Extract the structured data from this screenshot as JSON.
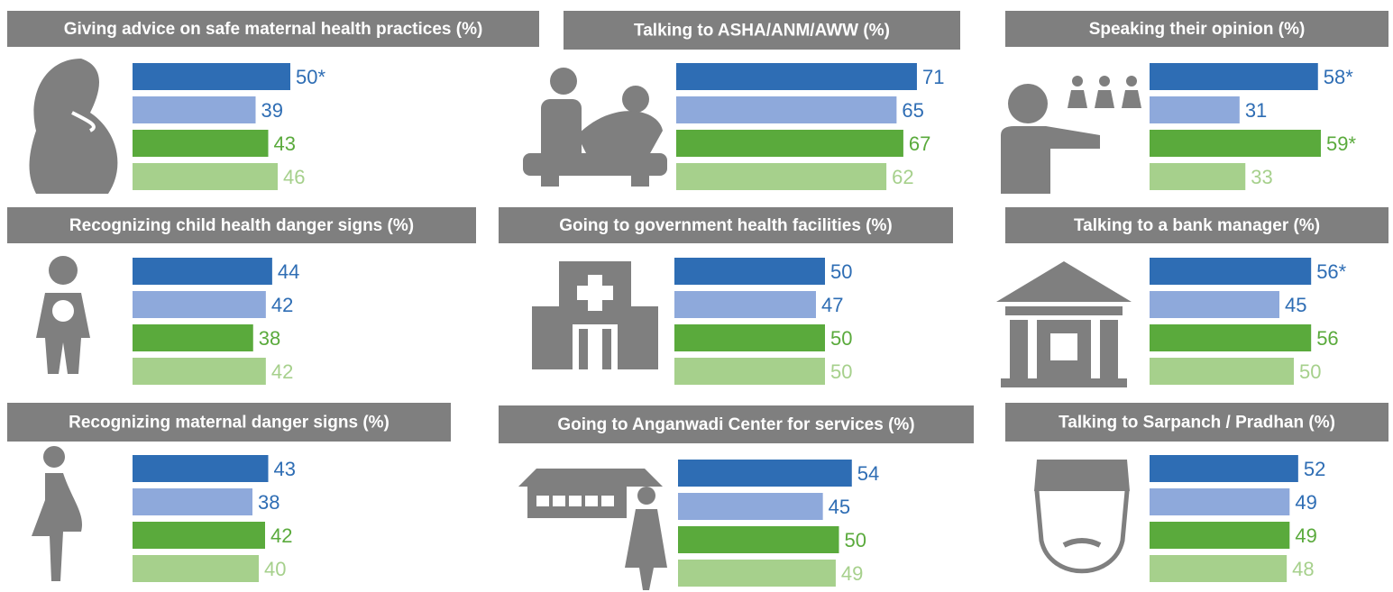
{
  "chart_data": [
    {
      "type": "bar",
      "title": "Giving advice on safe maternal health practices (%)",
      "values": [
        50,
        39,
        43,
        46
      ],
      "value_labels": [
        "50*",
        "39",
        "43",
        "46"
      ],
      "colors": [
        "#2e6db4",
        "#8ea9db",
        "#5aaa3c",
        "#a6d08c"
      ],
      "label_colors": [
        "#2e6db4",
        "#2e6db4",
        "#5aaa3c",
        "#a6d08c"
      ]
    },
    {
      "type": "bar",
      "title": "Talking to ASHA/ANM/AWW (%)",
      "values": [
        71,
        65,
        67,
        62
      ],
      "value_labels": [
        "71",
        "65",
        "67",
        "62"
      ],
      "colors": [
        "#2e6db4",
        "#8ea9db",
        "#5aaa3c",
        "#a6d08c"
      ],
      "label_colors": [
        "#2e6db4",
        "#2e6db4",
        "#5aaa3c",
        "#a6d08c"
      ]
    },
    {
      "type": "bar",
      "title": "Speaking their opinion (%)",
      "values": [
        58,
        31,
        59,
        33
      ],
      "value_labels": [
        "58*",
        "31",
        "59*",
        "33"
      ],
      "colors": [
        "#2e6db4",
        "#8ea9db",
        "#5aaa3c",
        "#a6d08c"
      ],
      "label_colors": [
        "#2e6db4",
        "#2e6db4",
        "#5aaa3c",
        "#a6d08c"
      ]
    },
    {
      "type": "bar",
      "title": "Recognizing child health danger signs (%)",
      "values": [
        44,
        42,
        38,
        42
      ],
      "value_labels": [
        "44",
        "42",
        "38",
        "42"
      ],
      "colors": [
        "#2e6db4",
        "#8ea9db",
        "#5aaa3c",
        "#a6d08c"
      ],
      "label_colors": [
        "#2e6db4",
        "#2e6db4",
        "#5aaa3c",
        "#a6d08c"
      ]
    },
    {
      "type": "bar",
      "title": "Going to government health facilities (%)",
      "values": [
        50,
        47,
        50,
        50
      ],
      "value_labels": [
        "50",
        "47",
        "50",
        "50"
      ],
      "colors": [
        "#2e6db4",
        "#8ea9db",
        "#5aaa3c",
        "#a6d08c"
      ],
      "label_colors": [
        "#2e6db4",
        "#2e6db4",
        "#5aaa3c",
        "#a6d08c"
      ]
    },
    {
      "type": "bar",
      "title": "Talking to a bank manager (%)",
      "values": [
        56,
        45,
        56,
        50
      ],
      "value_labels": [
        "56*",
        "45",
        "56",
        "50"
      ],
      "colors": [
        "#2e6db4",
        "#8ea9db",
        "#5aaa3c",
        "#a6d08c"
      ],
      "label_colors": [
        "#2e6db4",
        "#2e6db4",
        "#5aaa3c",
        "#a6d08c"
      ]
    },
    {
      "type": "bar",
      "title": "Recognizing maternal danger signs (%)",
      "values": [
        43,
        38,
        42,
        40
      ],
      "value_labels": [
        "43",
        "38",
        "42",
        "40"
      ],
      "colors": [
        "#2e6db4",
        "#8ea9db",
        "#5aaa3c",
        "#a6d08c"
      ],
      "label_colors": [
        "#2e6db4",
        "#2e6db4",
        "#5aaa3c",
        "#a6d08c"
      ]
    },
    {
      "type": "bar",
      "title": "Going to Anganwadi Center for services (%)",
      "values": [
        54,
        45,
        50,
        49
      ],
      "value_labels": [
        "54",
        "45",
        "50",
        "49"
      ],
      "colors": [
        "#2e6db4",
        "#8ea9db",
        "#5aaa3c",
        "#a6d08c"
      ],
      "label_colors": [
        "#2e6db4",
        "#2e6db4",
        "#5aaa3c",
        "#a6d08c"
      ]
    },
    {
      "type": "bar",
      "title": "Talking to Sarpanch / Pradhan (%)",
      "values": [
        52,
        49,
        49,
        48
      ],
      "value_labels": [
        "52",
        "49",
        "49",
        "48"
      ],
      "colors": [
        "#2e6db4",
        "#8ea9db",
        "#5aaa3c",
        "#a6d08c"
      ],
      "label_colors": [
        "#2e6db4",
        "#2e6db4",
        "#5aaa3c",
        "#a6d08c"
      ]
    }
  ]
}
